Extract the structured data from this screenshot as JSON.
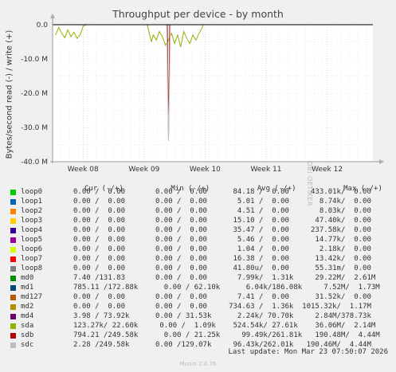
{
  "side_text": "RRDTOOL / TOBI OETIKER",
  "footer": {
    "last_update": "Last update: Mon Mar 23 07:50:07 2026",
    "munin": "Munin 2.0.76"
  },
  "legend_header": "Cur (-/+)           Min (-/+)           Avg (-/+)           Max (-/+)",
  "legend": [
    {
      "name": "loop0",
      "color": "#00cc00",
      "values": "0.00 /  0.00       0.00 /  0.00      84.18 /  0.00     433.01k/  0.00"
    },
    {
      "name": "loop1",
      "color": "#0066b3",
      "values": "0.00 /  0.00       0.00 /  0.00       5.01 /  0.00       8.74k/  0.00"
    },
    {
      "name": "loop2",
      "color": "#ff8000",
      "values": "0.00 /  0.00       0.00 /  0.00       4.51 /  0.00       8.03k/  0.00"
    },
    {
      "name": "loop3",
      "color": "#ffcc00",
      "values": "0.00 /  0.00       0.00 /  0.00      15.10 /  0.00      47.40k/  0.00"
    },
    {
      "name": "loop4",
      "color": "#330099",
      "values": "0.00 /  0.00       0.00 /  0.00      35.47 /  0.00     237.58k/  0.00"
    },
    {
      "name": "loop5",
      "color": "#990099",
      "values": "0.00 /  0.00       0.00 /  0.00       5.46 /  0.00      14.77k/  0.00"
    },
    {
      "name": "loop6",
      "color": "#ccff00",
      "values": "0.00 /  0.00       0.00 /  0.00       1.04 /  0.00       2.18k/  0.00"
    },
    {
      "name": "loop7",
      "color": "#ff0000",
      "values": "0.00 /  0.00       0.00 /  0.00      16.38 /  0.00      13.42k/  0.00"
    },
    {
      "name": "loop8",
      "color": "#808080",
      "values": "0.00 /  0.00       0.00 /  0.00      41.80u/  0.00      55.31m/  0.00"
    },
    {
      "name": "md0",
      "color": "#008f00",
      "values": "7.40 /131.83       0.00 /  0.00       7.99k/  1.31k     29.22M/  2.61M"
    },
    {
      "name": "md1",
      "color": "#00487d",
      "values": "785.11 /172.88k      0.00 / 62.10k      6.04k/186.08k     7.52M/  1.73M"
    },
    {
      "name": "md127",
      "color": "#b35a00",
      "values": "0.00 /  0.00       0.00 /  0.00       7.41 /  0.00      31.52k/  0.00"
    },
    {
      "name": "md2",
      "color": "#b38f00",
      "values": "0.00 /  0.00       0.00 /  0.00     734.63 /  1.36k  1015.32k/  1.17M"
    },
    {
      "name": "md4",
      "color": "#6b006b",
      "values": "3.98 / 73.92k      0.00 / 31.53k      2.24k/ 70.70k     2.84M/378.73k"
    },
    {
      "name": "sda",
      "color": "#8fb300",
      "values": "123.27k/ 22.60k     0.00 /  1.09k    524.54k/ 27.61k    36.06M/  2.14M"
    },
    {
      "name": "sdb",
      "color": "#b30000",
      "values": "794.21 /249.58k      0.00 / 21.25k     99.49k/261.81k   190.48M/  4.44M"
    },
    {
      "name": "sdc",
      "color": "#bebebe",
      "values": "2.28 /249.58k      0.00 /129.07k     96.43k/262.01k   190.46M/  4.44M"
    }
  ],
  "chart_data": {
    "type": "line",
    "title": "Throughput per device - by month",
    "ylabel": "Bytes/second read (-) / write (+)",
    "ylim": [
      -40000000,
      0
    ],
    "y_ticks": [
      {
        "value": 0,
        "label": "0.0"
      },
      {
        "value": -10000000,
        "label": "-10.0 M"
      },
      {
        "value": -20000000,
        "label": "-20.0 M"
      },
      {
        "value": -30000000,
        "label": "-30.0 M"
      },
      {
        "value": -40000000,
        "label": "-40.0 M"
      }
    ],
    "xlim": [
      7.5,
      12.75
    ],
    "x_ticks": [
      {
        "value": 8,
        "label": "Week 08"
      },
      {
        "value": 9,
        "label": "Week 09"
      },
      {
        "value": 10,
        "label": "Week 10"
      },
      {
        "value": 11,
        "label": "Week 11"
      },
      {
        "value": 12,
        "label": "Week 12"
      }
    ],
    "grid": true,
    "series": [
      {
        "name": "sda",
        "color": "#8fb300",
        "x": [
          7.55,
          7.6,
          7.65,
          7.7,
          7.75,
          7.8,
          7.85,
          7.9,
          7.95,
          8.0,
          8.05,
          9.05,
          9.12,
          9.15,
          9.2,
          9.25,
          9.3,
          9.35,
          9.4,
          9.45,
          9.5,
          9.55,
          9.6,
          9.65,
          9.7,
          9.75,
          9.8,
          9.85,
          9.9,
          9.95,
          9.97
        ],
        "y": [
          -3000000,
          -800000,
          -2500000,
          -3800000,
          -1500000,
          -3500000,
          -2200000,
          -4000000,
          -3000000,
          -500000,
          0,
          0,
          -5000000,
          -3000000,
          -4500000,
          -2000000,
          -3500000,
          -6000000,
          -4500000,
          -2500000,
          -5500000,
          -3000000,
          -6500000,
          -2000000,
          -4000000,
          -5500000,
          -3000000,
          -4500000,
          -2500000,
          -1000000,
          0
        ]
      },
      {
        "name": "sdb",
        "color": "#b30000",
        "x": [
          9.38,
          9.4,
          9.42
        ],
        "y": [
          0,
          -33500000,
          0
        ]
      },
      {
        "name": "sdc",
        "color": "#bebebe",
        "x": [
          9.37,
          9.4,
          9.43
        ],
        "y": [
          0,
          -34000000,
          0
        ]
      }
    ]
  }
}
